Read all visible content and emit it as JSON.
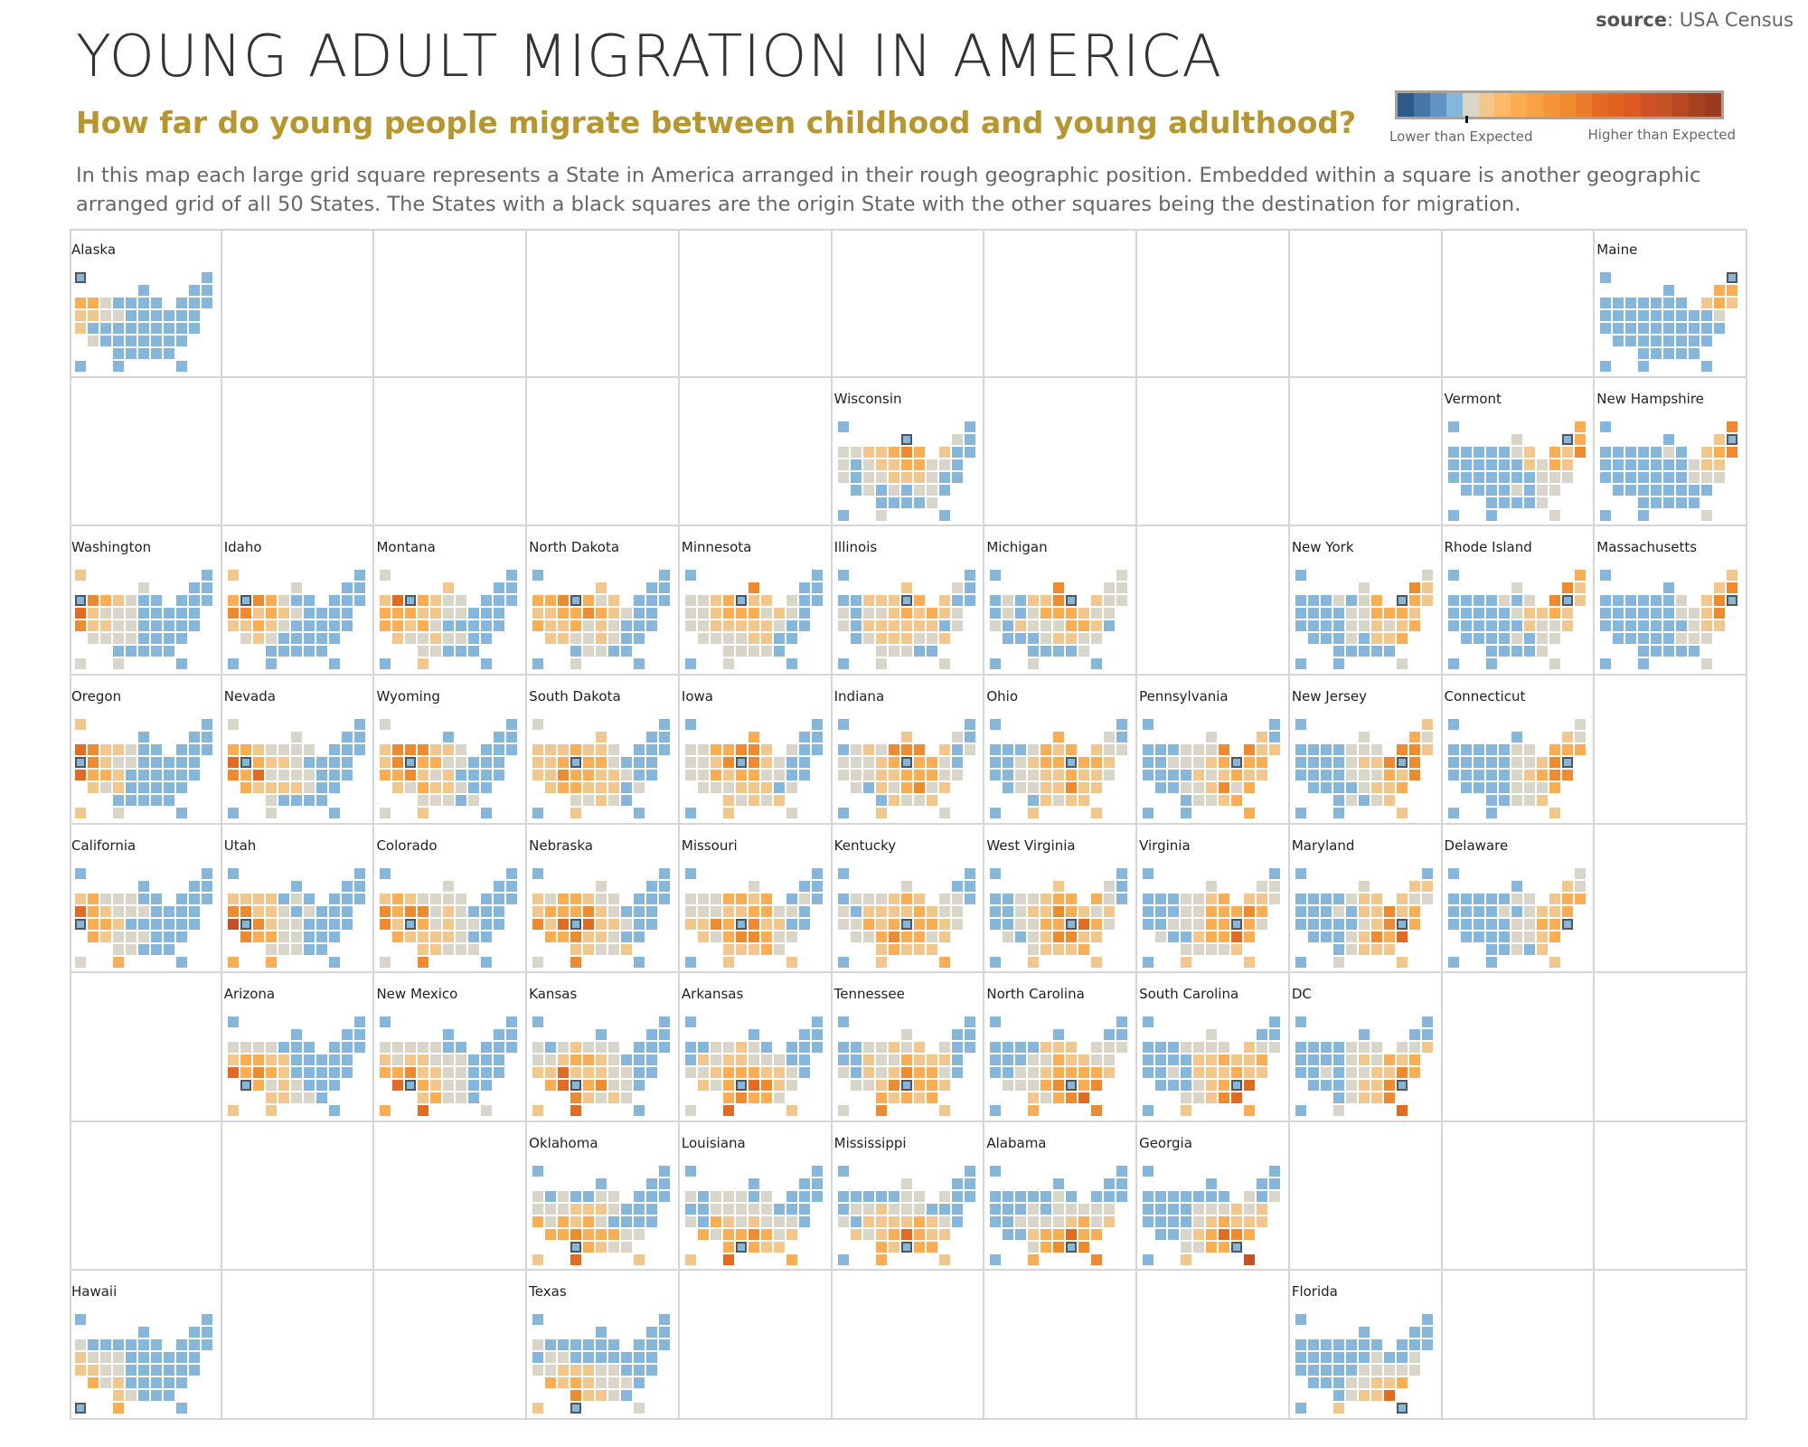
{
  "header": {
    "source_label": "source",
    "source_value": ": USA Census",
    "title": "YOUNG ADULT MIGRATION IN AMERICA",
    "subtitle": "How far do young people migrate between childhood and young adulthood?",
    "description": "In this map each large grid square represents a State in America  arranged in their rough geographic position. Embedded within a square is another geographic arranged grid of all 50 States. The  States with a black squares are the origin State with the other squares being the destination for migration."
  },
  "legend": {
    "low_label": "Lower than Expected",
    "high_label": "Higher than Expected",
    "colors": [
      "#2a5b8b",
      "#4576a6",
      "#6094c4",
      "#85b7dc",
      "#d9d5c8",
      "#f3c68c",
      "#fdb968",
      "#fcad52",
      "#f9a144",
      "#f6943a",
      "#f08a2f",
      "#ec7c29",
      "#e56a21",
      "#e2621f",
      "#dc5a1f",
      "#cc5223",
      "#c55224",
      "#b74824",
      "#a8411f",
      "#9c3a20"
    ]
  },
  "colors": {
    "origin_outline": "#555555",
    "grid_line": "#d6d6d6",
    "subtitle": "#b8962e"
  },
  "states": [
    "Alaska",
    "Maine",
    "Wisconsin",
    "Vermont",
    "New Hampshire",
    "Washington",
    "Idaho",
    "Montana",
    "North Dakota",
    "Minnesota",
    "Illinois",
    "Michigan",
    "New York",
    "Rhode Island",
    "Massachusetts",
    "Oregon",
    "Nevada",
    "Wyoming",
    "South Dakota",
    "Iowa",
    "Indiana",
    "Ohio",
    "Pennsylvania",
    "New Jersey",
    "Connecticut",
    "California",
    "Utah",
    "Colorado",
    "Nebraska",
    "Missouri",
    "Kentucky",
    "West Virginia",
    "Virginia",
    "Maryland",
    "Delaware",
    "Arizona",
    "New Mexico",
    "Kansas",
    "Arkansas",
    "Tennessee",
    "North Carolina",
    "South Carolina",
    "DC",
    "Oklahoma",
    "Louisiana",
    "Mississippi",
    "Alabama",
    "Georgia",
    "Hawaii",
    "Texas",
    "Florida"
  ]
}
